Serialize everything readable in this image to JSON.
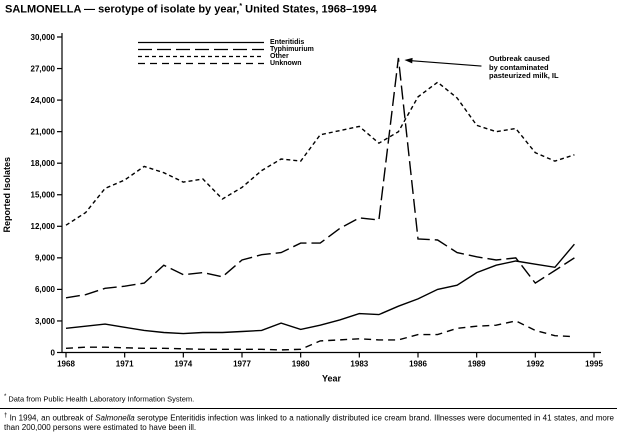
{
  "title": {
    "part1": "SALMONELLA — serotype of isolate by year,",
    "sup": "*",
    "part2": " United States, 1968–1994"
  },
  "footnotes": {
    "note1_marker": "*",
    "note1_text": "Data from Public Health Laboratory Information System.",
    "note2_marker": "†",
    "note2_part1": "In 1994, an outbreak of ",
    "note2_italic": "Salmonella",
    "note2_part2": " serotype Enteritidis infection was linked to a nationally distributed ice cream brand. Illnesses were documented in 41 states, and more than 200,000 persons were estimated to have been ill."
  },
  "chart_data": {
    "type": "line",
    "title": "SALMONELLA — serotype of isolate by year, United States, 1968–1994",
    "xlabel": "Year",
    "ylabel": "Reported Isolates",
    "xlim": [
      1968,
      1995
    ],
    "ylim": [
      0,
      30000
    ],
    "grid": false,
    "legend_position": "top-left",
    "line_color": "#000000",
    "background": "#ffffff",
    "x_ticks": [
      1968,
      1971,
      1974,
      1977,
      1980,
      1983,
      1986,
      1989,
      1992,
      1995
    ],
    "y_ticks": [
      0,
      3000,
      6000,
      9000,
      12000,
      15000,
      18000,
      21000,
      24000,
      27000,
      30000
    ],
    "years": [
      1968,
      1969,
      1970,
      1971,
      1972,
      1973,
      1974,
      1975,
      1976,
      1977,
      1978,
      1979,
      1980,
      1981,
      1982,
      1983,
      1984,
      1985,
      1986,
      1987,
      1988,
      1989,
      1990,
      1991,
      1992,
      1993,
      1994
    ],
    "series": [
      {
        "name": "Enteritidis",
        "dash": "",
        "values": [
          2300,
          2500,
          2700,
          2400,
          2100,
          1900,
          1800,
          1900,
          1900,
          2000,
          2100,
          2800,
          2200,
          2600,
          3100,
          3700,
          3600,
          4400,
          5100,
          6000,
          6400,
          7600,
          8300,
          8700,
          8400,
          8100,
          10300
        ]
      },
      {
        "name": "Typhimurium",
        "dash": "14 5",
        "values": [
          5200,
          5500,
          6100,
          6300,
          6600,
          8300,
          7400,
          7600,
          7200,
          8800,
          9300,
          9500,
          10400,
          10400,
          11800,
          12800,
          12600,
          28000,
          10800,
          10700,
          9500,
          9100,
          8800,
          9000,
          6600,
          7800,
          9000
        ]
      },
      {
        "name": "Other",
        "dash": "4 3",
        "values": [
          12100,
          13300,
          15600,
          16400,
          17700,
          17100,
          16200,
          16500,
          14600,
          15700,
          17300,
          18400,
          18200,
          20700,
          21100,
          21500,
          19900,
          21000,
          24300,
          25700,
          24200,
          21600,
          21000,
          21300,
          19000,
          18200,
          18800
        ]
      },
      {
        "name": "Unknown",
        "dash": "7 5",
        "values": [
          400,
          500,
          500,
          450,
          400,
          400,
          350,
          300,
          300,
          300,
          300,
          250,
          300,
          1100,
          1200,
          1300,
          1200,
          1200,
          1700,
          1700,
          2300,
          2500,
          2600,
          3000,
          2100,
          1600,
          1500
        ]
      }
    ],
    "annotation": {
      "lines": [
        "Outbreak caused",
        "by contaminated",
        "pasteurized milk, IL"
      ],
      "target": {
        "x": 1985,
        "y": 28000
      }
    }
  }
}
